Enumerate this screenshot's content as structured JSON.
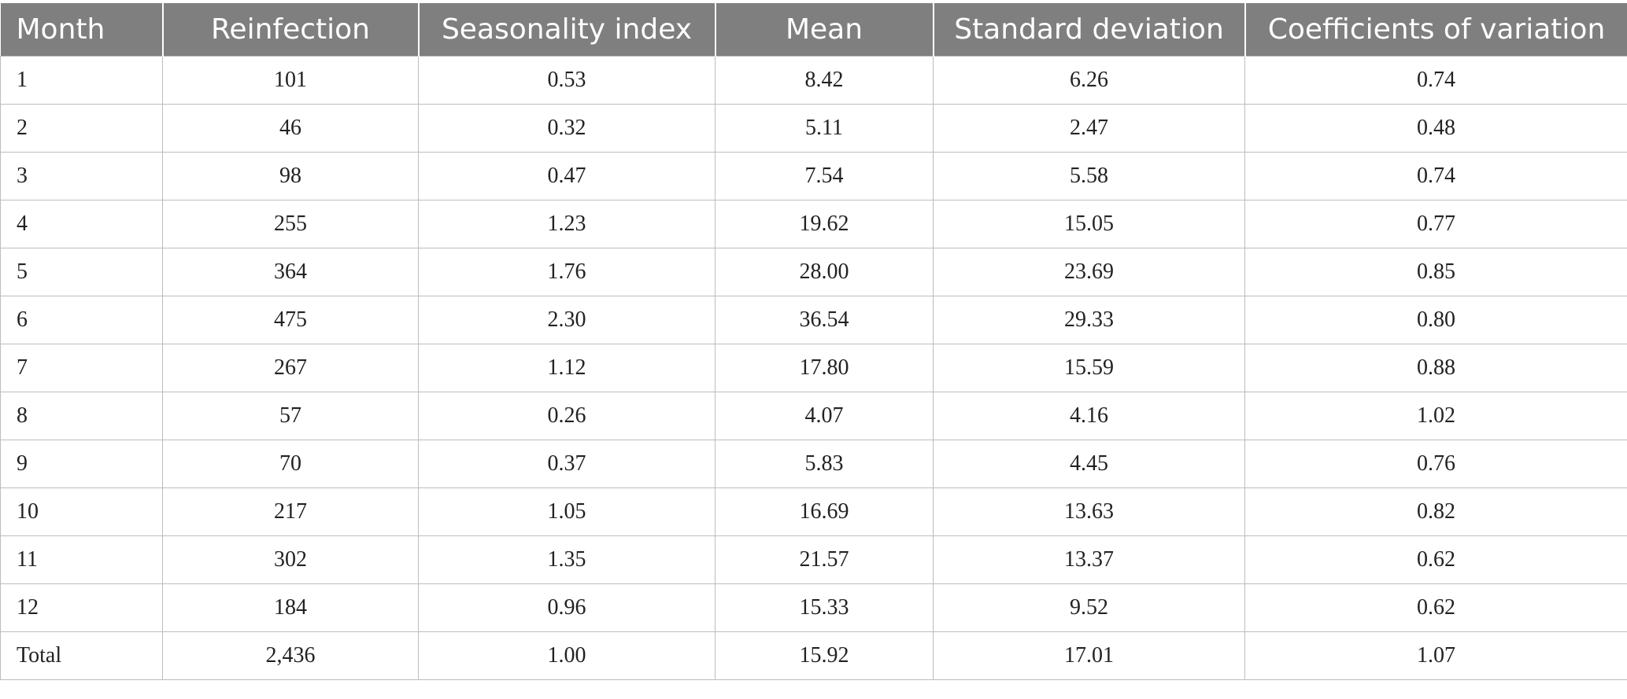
{
  "table": {
    "headers": [
      "Month",
      "Reinfection",
      "Seasonality index",
      "Mean",
      "Standard deviation",
      "Coefficients of variation"
    ],
    "rows": [
      [
        "1",
        "101",
        "0.53",
        "8.42",
        "6.26",
        "0.74"
      ],
      [
        "2",
        "46",
        "0.32",
        "5.11",
        "2.47",
        "0.48"
      ],
      [
        "3",
        "98",
        "0.47",
        "7.54",
        "5.58",
        "0.74"
      ],
      [
        "4",
        "255",
        "1.23",
        "19.62",
        "15.05",
        "0.77"
      ],
      [
        "5",
        "364",
        "1.76",
        "28.00",
        "23.69",
        "0.85"
      ],
      [
        "6",
        "475",
        "2.30",
        "36.54",
        "29.33",
        "0.80"
      ],
      [
        "7",
        "267",
        "1.12",
        "17.80",
        "15.59",
        "0.88"
      ],
      [
        "8",
        "57",
        "0.26",
        "4.07",
        "4.16",
        "1.02"
      ],
      [
        "9",
        "70",
        "0.37",
        "5.83",
        "4.45",
        "0.76"
      ],
      [
        "10",
        "217",
        "1.05",
        "16.69",
        "13.63",
        "0.82"
      ],
      [
        "11",
        "302",
        "1.35",
        "21.57",
        "13.37",
        "0.62"
      ],
      [
        "12",
        "184",
        "0.96",
        "15.33",
        "9.52",
        "0.62"
      ],
      [
        "Total",
        "2,436",
        "1.00",
        "15.92",
        "17.01",
        "1.07"
      ]
    ]
  },
  "colors": {
    "header_background": "#7f7f7f",
    "header_text": "#ffffff",
    "grid_line": "#bdbdbd"
  }
}
